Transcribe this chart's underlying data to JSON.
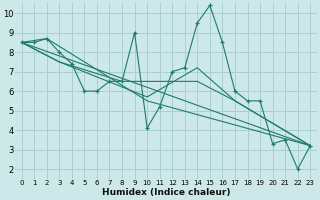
{
  "xlabel": "Humidex (Indice chaleur)",
  "xlim": [
    -0.5,
    23.5
  ],
  "ylim": [
    1.5,
    10.5
  ],
  "xticks": [
    0,
    1,
    2,
    3,
    4,
    5,
    6,
    7,
    8,
    9,
    10,
    11,
    12,
    13,
    14,
    15,
    16,
    17,
    18,
    19,
    20,
    21,
    22,
    23
  ],
  "yticks": [
    2,
    3,
    4,
    5,
    6,
    7,
    8,
    9,
    10
  ],
  "bg_color": "#cce8e8",
  "grid_color": "#aacece",
  "line_color": "#1e7a70",
  "line1": {
    "x": [
      0,
      1,
      2,
      3,
      4,
      5,
      6,
      7,
      8,
      9,
      10,
      11,
      12,
      13,
      14,
      15,
      16,
      17,
      18,
      19,
      20,
      21,
      22,
      23
    ],
    "y": [
      8.5,
      8.5,
      8.7,
      8.0,
      7.4,
      6.0,
      6.0,
      6.5,
      6.5,
      9.0,
      4.1,
      5.2,
      7.0,
      7.2,
      9.5,
      10.4,
      8.5,
      6.0,
      5.5,
      5.5,
      3.3,
      3.5,
      2.0,
      3.2
    ]
  },
  "line2": {
    "x": [
      0,
      2,
      10,
      23
    ],
    "y": [
      8.5,
      8.7,
      5.5,
      3.2
    ]
  },
  "line3": {
    "x": [
      0,
      23
    ],
    "y": [
      8.5,
      3.2
    ]
  },
  "line4": {
    "x": [
      0,
      3,
      10,
      14,
      17,
      23
    ],
    "y": [
      8.5,
      7.5,
      5.7,
      7.2,
      5.5,
      3.2
    ]
  },
  "line5": {
    "x": [
      0,
      3,
      8,
      14,
      17,
      23
    ],
    "y": [
      8.5,
      7.5,
      6.5,
      6.5,
      5.5,
      3.2
    ]
  }
}
